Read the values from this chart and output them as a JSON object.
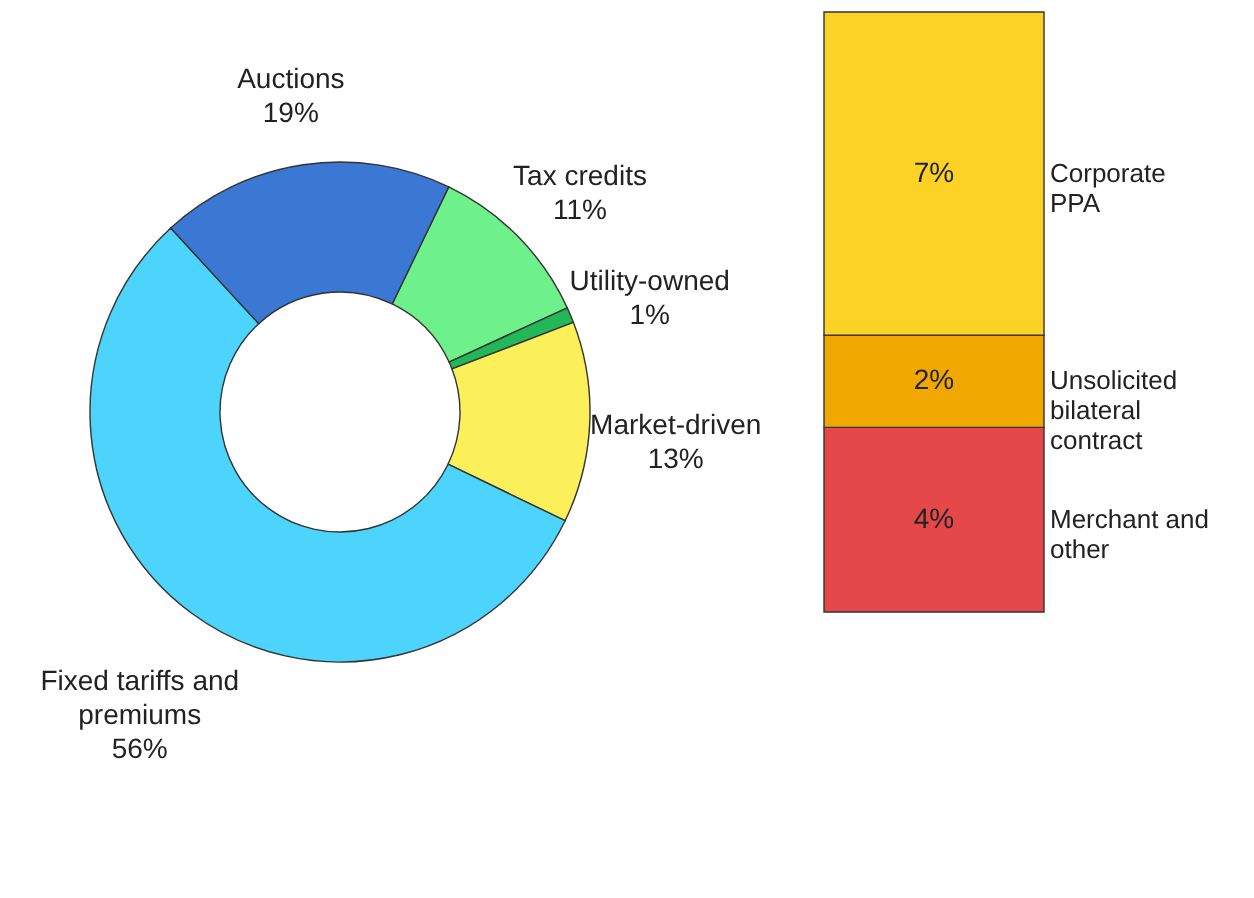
{
  "chart_data": [
    {
      "type": "donut",
      "categories": [
        "Tax credits",
        "Utility-owned",
        "Market-driven",
        "Fixed tariffs and premiums",
        "Auctions"
      ],
      "values": [
        11,
        1,
        13,
        56,
        19
      ],
      "value_labels": [
        "11%",
        "1%",
        "13%",
        "56%",
        "19%"
      ],
      "colors": [
        "#6ef08a",
        "#22b85a",
        "#fbef5a",
        "#4dd4fc",
        "#3a78d4"
      ]
    },
    {
      "type": "bar",
      "stacked": true,
      "categories": [
        null
      ],
      "series": [
        {
          "name": "Merchant and other",
          "color": "#e54848",
          "values": [
            4
          ],
          "value_labels": [
            "4%"
          ]
        },
        {
          "name": "Unsolicited bilateral contract",
          "color": "#f0a800",
          "values": [
            2
          ],
          "value_labels": [
            "2%"
          ]
        },
        {
          "name": "Corporate PPA",
          "color": "#fcd227",
          "values": [
            7
          ],
          "value_labels": [
            "7%"
          ]
        }
      ]
    }
  ]
}
